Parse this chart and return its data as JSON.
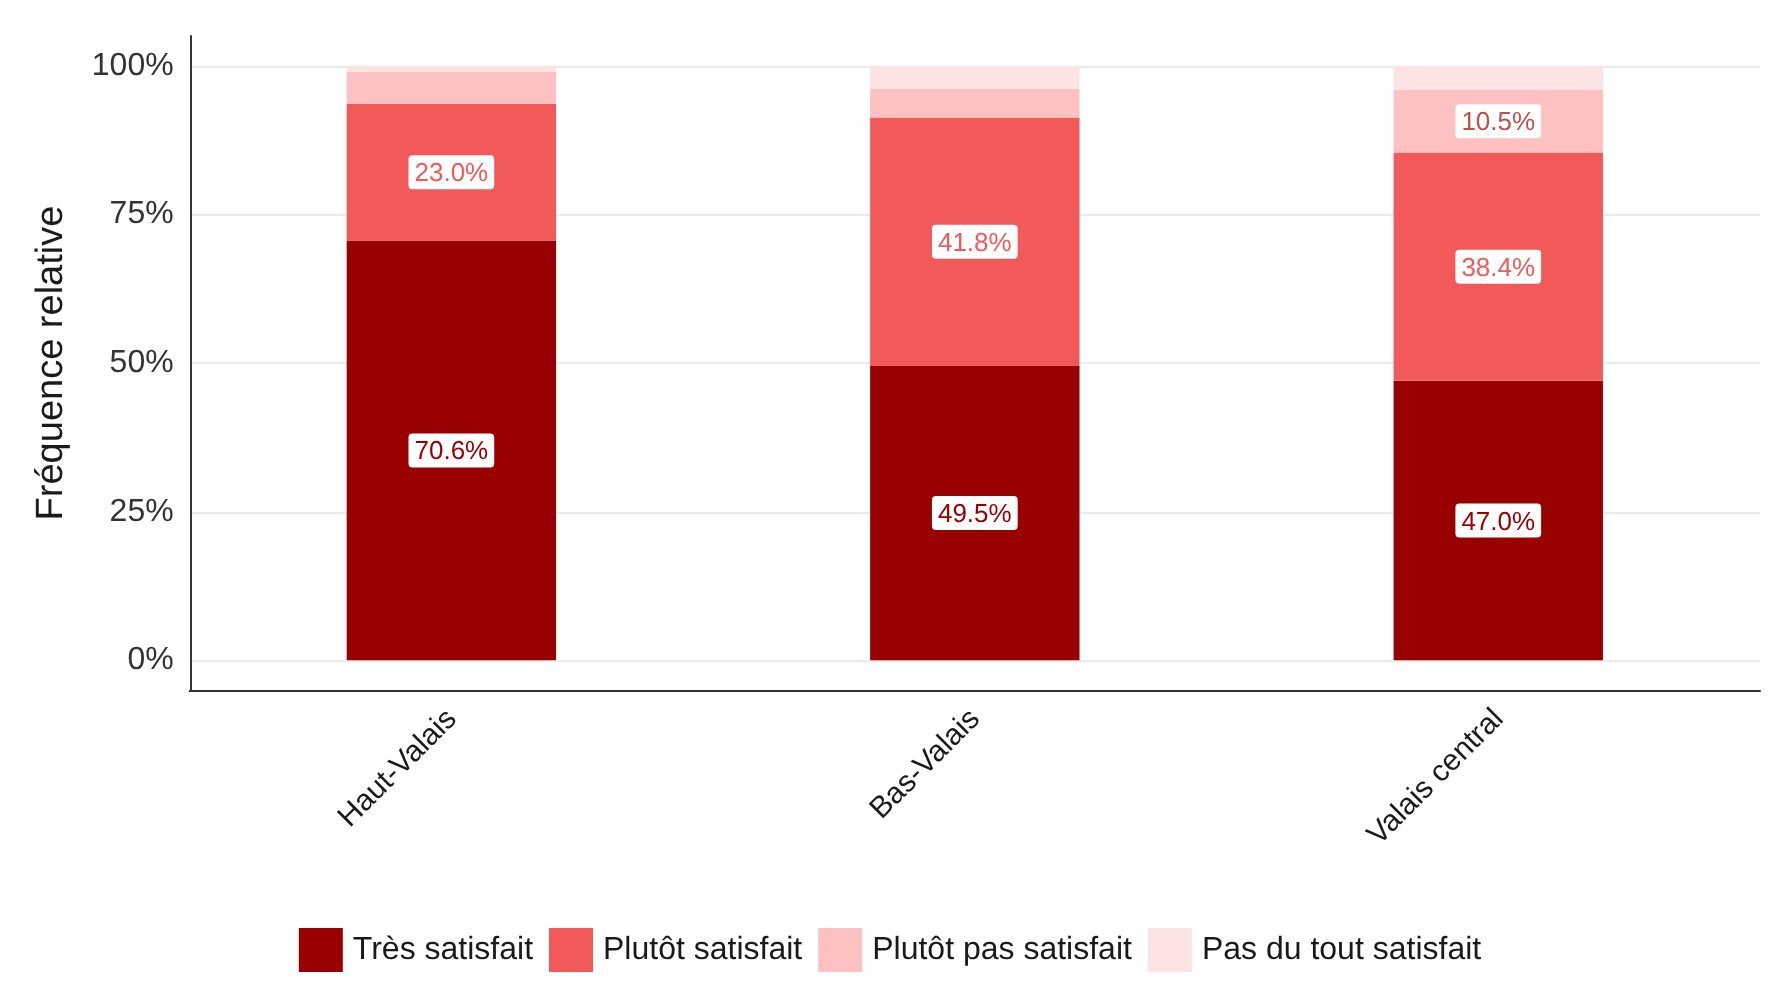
{
  "chart_data": {
    "type": "bar",
    "stacked": true,
    "ylabel": "Fréquence relative",
    "categories": [
      "Haut-Valais",
      "Bas-Valais",
      "Valais central"
    ],
    "series": [
      {
        "name": "Très satisfait",
        "color": "#990000",
        "values": [
          70.6,
          49.5,
          47.0
        ],
        "value_labels": [
          "70.6%",
          "49.5%",
          "47.0%"
        ]
      },
      {
        "name": "Plutôt satisfait",
        "color": "#f25a5a",
        "values": [
          23.0,
          41.8,
          38.4
        ],
        "value_labels": [
          "23.0%",
          "41.8%",
          "38.4%"
        ]
      },
      {
        "name": "Plutôt pas satisfait",
        "color": "#fdc1c1",
        "values": [
          5.4,
          4.8,
          10.5
        ],
        "value_labels": [
          null,
          null,
          "10.5%"
        ]
      },
      {
        "name": "Pas du tout satisfait",
        "color": "#fde4e4",
        "values": [
          1.0,
          3.9,
          4.1
        ],
        "value_labels": [
          null,
          null,
          null
        ]
      }
    ],
    "ylim": [
      -5,
      105
    ],
    "yticks": [
      {
        "value": 0,
        "label": "0%"
      },
      {
        "value": 25,
        "label": "25%"
      },
      {
        "value": 50,
        "label": "50%"
      },
      {
        "value": 75,
        "label": "75%"
      },
      {
        "value": 100,
        "label": "100%"
      }
    ],
    "grid": "y",
    "legend": "bottom"
  }
}
